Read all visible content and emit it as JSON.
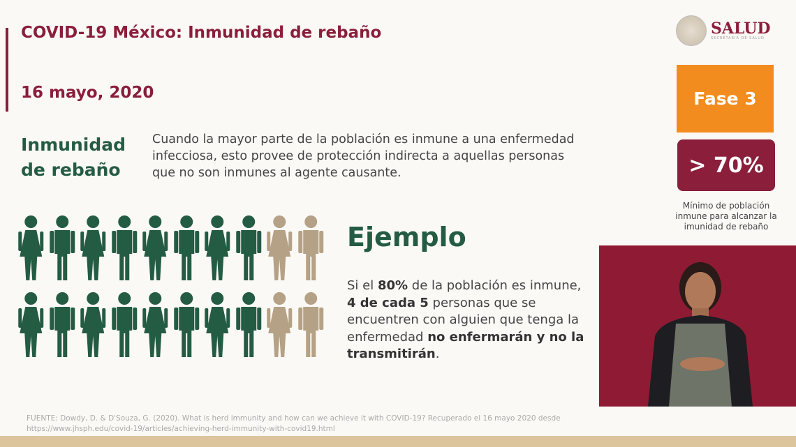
{
  "header": {
    "title": "COVID-19 México: Inmunidad de rebaño",
    "date": "16 mayo, 2020"
  },
  "logo": {
    "name": "SALUD",
    "subtitle": "SECRETARÍA DE SALUD"
  },
  "definition": {
    "term_line1": "Inmunidad",
    "term_line2": "de rebaño",
    "text": "Cuando la mayor parte de la población es inmune a una enfermedad infecciosa, esto provee de protección indirecta a aquellas personas que no son inmunes al agente causante."
  },
  "phase": {
    "label": "Fase 3",
    "threshold": "> 70%",
    "note": "Mínimo de población inmune para alcanzar la imunidad de rebaño",
    "colors": {
      "phase": "#f28c1e",
      "threshold": "#8a1e3b"
    }
  },
  "example": {
    "heading": "Ejemplo",
    "p1": "Si el ",
    "b1": "80%",
    "p2": " de la población es inmune, ",
    "b2": "4 de cada 5",
    "p3": " personas que se encuentren con alguien que tenga la enfermedad ",
    "b3": "no enfermarán y no la transmitirán",
    "p4": "."
  },
  "people": {
    "per_row": 10,
    "rows": 2,
    "immune": 8,
    "colors": {
      "immune": "#245c43",
      "not_immune": "#b5a185"
    }
  },
  "source": {
    "line1": "FUENTE: Dowdy, D. & D'Souza, G. (2020). What is herd immunity and how can we achieve it with COVID-19? Recuperado el 16 mayo 2020 desde",
    "line2": "https://www.jhsph.edu/covid-19/articles/achieving-herd-immunity-with-covid19.html"
  }
}
